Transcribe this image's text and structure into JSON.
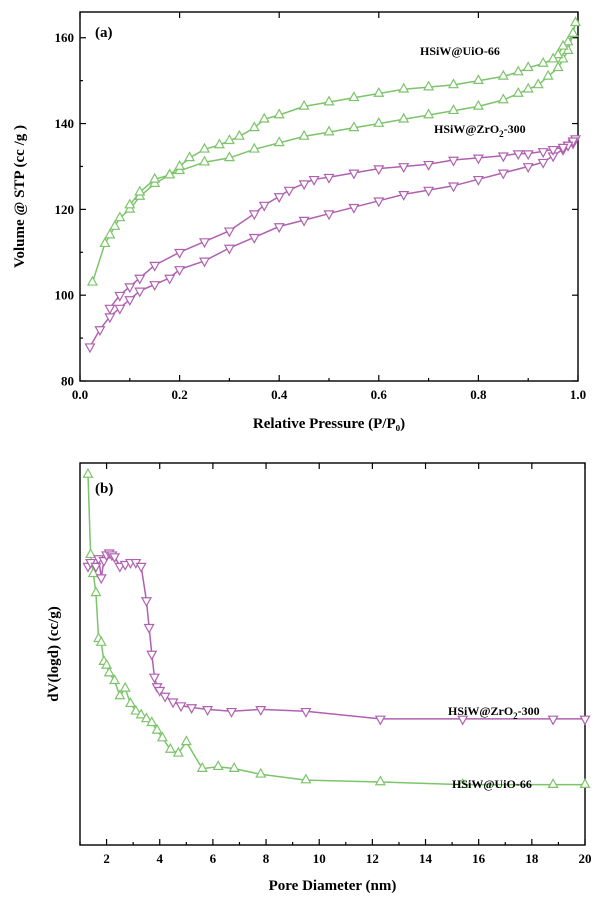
{
  "chart_data": [
    {
      "type": "line",
      "panel_label": "(a)",
      "xlabel": "Relative Pressure (P/P₀)",
      "ylabel": "Volume @ STP (cc /g )",
      "xlim": [
        0,
        1.0
      ],
      "ylim": [
        80,
        166
      ],
      "xticks": [
        "0.0",
        "0.2",
        "0.4",
        "0.6",
        "0.8",
        "1.0"
      ],
      "yticks": [
        "80",
        "100",
        "120",
        "140",
        "160"
      ],
      "series": [
        {
          "name": "HSiW@UiO-66",
          "color": "#7cc46a",
          "marker": "triangle-up",
          "label_text": "HSiW@UiO-66",
          "x": [
            0.025,
            0.05,
            0.06,
            0.07,
            0.08,
            0.1,
            0.12,
            0.15,
            0.18,
            0.2,
            0.25,
            0.3,
            0.35,
            0.4,
            0.45,
            0.5,
            0.55,
            0.6,
            0.65,
            0.7,
            0.75,
            0.8,
            0.85,
            0.88,
            0.9,
            0.92,
            0.94,
            0.96,
            0.97,
            0.98,
            0.99,
            0.995,
            0.99,
            0.98,
            0.97,
            0.96,
            0.95,
            0.93,
            0.9,
            0.88,
            0.85,
            0.8,
            0.75,
            0.7,
            0.65,
            0.6,
            0.55,
            0.5,
            0.45,
            0.4,
            0.37,
            0.35,
            0.32,
            0.3,
            0.28,
            0.25,
            0.22,
            0.2,
            0.18,
            0.15,
            0.12,
            0.1
          ],
          "y": [
            103,
            112,
            114,
            116,
            118,
            120,
            123,
            126,
            128,
            129,
            131,
            132,
            134,
            135.5,
            137,
            138,
            139,
            140,
            141,
            142,
            143,
            144,
            145.5,
            147,
            148,
            149,
            151,
            153,
            155,
            157,
            161,
            163.5,
            161,
            159,
            158,
            156,
            155,
            154,
            153,
            152,
            151,
            150,
            149,
            148.5,
            148,
            147,
            146,
            145,
            144,
            142,
            141,
            139,
            137,
            136,
            135,
            134,
            132,
            130,
            128,
            127,
            124,
            121
          ]
        },
        {
          "name": "HSiW@ZrO2-300",
          "color": "#b060b0",
          "marker": "triangle-down",
          "label_text": "HSiW@ZrO",
          "label_sub": "2",
          "label_tail": "-300",
          "x": [
            0.02,
            0.04,
            0.06,
            0.08,
            0.1,
            0.12,
            0.15,
            0.18,
            0.2,
            0.25,
            0.3,
            0.35,
            0.4,
            0.45,
            0.5,
            0.55,
            0.6,
            0.65,
            0.7,
            0.75,
            0.8,
            0.85,
            0.9,
            0.93,
            0.95,
            0.97,
            0.98,
            0.99,
            0.995,
            0.99,
            0.98,
            0.97,
            0.95,
            0.93,
            0.9,
            0.88,
            0.85,
            0.8,
            0.75,
            0.7,
            0.65,
            0.6,
            0.55,
            0.5,
            0.47,
            0.45,
            0.42,
            0.4,
            0.37,
            0.35,
            0.3,
            0.25,
            0.2,
            0.15,
            0.12,
            0.1,
            0.08,
            0.06
          ],
          "y": [
            88,
            92,
            95,
            97,
            99,
            101,
            102.5,
            104,
            106,
            108,
            111,
            113.5,
            116,
            117.5,
            119,
            120.5,
            122,
            123.5,
            124.5,
            125.5,
            127,
            128.5,
            130,
            131,
            132.5,
            134,
            135,
            135.5,
            136.5,
            136,
            135,
            134.5,
            134,
            133.5,
            133,
            133,
            132.5,
            132,
            131.5,
            130.5,
            130,
            129.5,
            128.5,
            127.5,
            127,
            126,
            124.5,
            123,
            121,
            119,
            115,
            112.5,
            110,
            107,
            104,
            102,
            100,
            97
          ]
        }
      ]
    },
    {
      "type": "line",
      "panel_label": "(b)",
      "xlabel": "Pore Diameter (nm)",
      "ylabel": "dV(logd)  (cc/g)",
      "xlim": [
        1,
        20
      ],
      "ylim": [
        0,
        1
      ],
      "xticks": [
        "2",
        "4",
        "6",
        "8",
        "10",
        "12",
        "14",
        "16",
        "18",
        "20"
      ],
      "yticks": [],
      "series": [
        {
          "name": "HSiW@UiO-66",
          "color": "#7cc46a",
          "marker": "triangle-up",
          "label_text": "HSiW@UiO-66",
          "x": [
            1.3,
            1.4,
            1.5,
            1.6,
            1.7,
            1.8,
            1.9,
            2.0,
            2.1,
            2.3,
            2.5,
            2.7,
            2.9,
            3.1,
            3.3,
            3.5,
            3.7,
            3.9,
            4.1,
            4.4,
            4.7,
            5.0,
            5.6,
            6.2,
            6.8,
            7.8,
            9.5,
            12.3,
            15.4,
            18.8,
            20
          ],
          "y": [
            0.97,
            0.76,
            0.71,
            0.66,
            0.54,
            0.53,
            0.48,
            0.47,
            0.45,
            0.43,
            0.39,
            0.41,
            0.37,
            0.35,
            0.34,
            0.33,
            0.32,
            0.3,
            0.28,
            0.25,
            0.24,
            0.27,
            0.2,
            0.205,
            0.2,
            0.185,
            0.17,
            0.165,
            0.158,
            0.158,
            0.158
          ]
        },
        {
          "name": "HSiW@ZrO2-300",
          "color": "#b060b0",
          "marker": "triangle-down",
          "label_text": "HSiW@ZrO",
          "label_sub": "2",
          "label_tail": "-300",
          "x": [
            1.3,
            1.4,
            1.6,
            1.7,
            1.8,
            1.9,
            2.0,
            2.1,
            2.2,
            2.3,
            2.5,
            2.7,
            2.9,
            3.1,
            3.3,
            3.5,
            3.6,
            3.7,
            3.8,
            3.9,
            4.0,
            4.2,
            4.5,
            4.8,
            5.2,
            5.8,
            6.7,
            7.8,
            9.5,
            12.3,
            15.4,
            18.8,
            20
          ],
          "y": [
            0.73,
            0.74,
            0.73,
            0.75,
            0.7,
            0.745,
            0.76,
            0.765,
            0.76,
            0.755,
            0.73,
            0.735,
            0.74,
            0.74,
            0.73,
            0.64,
            0.57,
            0.5,
            0.44,
            0.415,
            0.405,
            0.39,
            0.375,
            0.365,
            0.36,
            0.355,
            0.35,
            0.355,
            0.35,
            0.33,
            0.33,
            0.33,
            0.33
          ]
        }
      ]
    }
  ]
}
